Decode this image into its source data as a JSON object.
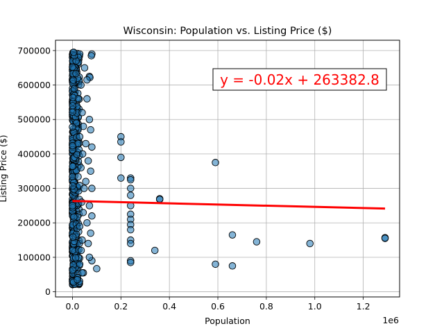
{
  "chart_data": {
    "type": "scatter",
    "title": "Wisconsin: Population vs. Listing Price ($)",
    "xlabel": "Population",
    "ylabel": "Listing Price ($)",
    "x_offset_label": "1e6",
    "xlim": [
      -70000,
      1350000
    ],
    "ylim": [
      -15000,
      730000
    ],
    "x_ticks": [
      0,
      200000,
      400000,
      600000,
      800000,
      1000000,
      1200000
    ],
    "x_tick_labels": [
      "0.0",
      "0.2",
      "0.4",
      "0.6",
      "0.8",
      "1.0",
      "1.2"
    ],
    "y_ticks": [
      0,
      100000,
      200000,
      300000,
      400000,
      500000,
      600000,
      700000
    ],
    "y_tick_labels": [
      "0",
      "100000",
      "200000",
      "300000",
      "400000",
      "500000",
      "600000",
      "700000"
    ],
    "grid": true,
    "regression": {
      "equation": "y = -0.02x + 263382.8",
      "slope": -0.017,
      "intercept": 263382.8,
      "x_range": [
        0,
        1290000
      ],
      "color": "#ff0000"
    },
    "marker_color": "#1f77b4",
    "marker_edge": "#000000",
    "points": [
      [
        200000,
        450000
      ],
      [
        200000,
        435000
      ],
      [
        200000,
        390000
      ],
      [
        200000,
        330000
      ],
      [
        240000,
        330000
      ],
      [
        240000,
        325000
      ],
      [
        240000,
        300000
      ],
      [
        240000,
        280000
      ],
      [
        240000,
        250000
      ],
      [
        240000,
        225000
      ],
      [
        240000,
        210000
      ],
      [
        240000,
        195000
      ],
      [
        240000,
        180000
      ],
      [
        240000,
        150000
      ],
      [
        240000,
        140000
      ],
      [
        240000,
        90000
      ],
      [
        240000,
        85000
      ],
      [
        360000,
        270000
      ],
      [
        360000,
        268000
      ],
      [
        340000,
        120000
      ],
      [
        590000,
        375000
      ],
      [
        590000,
        80000
      ],
      [
        660000,
        165000
      ],
      [
        660000,
        75000
      ],
      [
        760000,
        145000
      ],
      [
        980000,
        140000
      ],
      [
        1290000,
        157000
      ],
      [
        1290000,
        155000
      ],
      [
        100000,
        67000
      ],
      [
        80000,
        690000
      ],
      [
        78000,
        685000
      ],
      [
        70000,
        625000
      ],
      [
        72000,
        622000
      ],
      [
        60000,
        615000
      ],
      [
        50000,
        650000
      ],
      [
        30000,
        690000
      ],
      [
        25000,
        680000
      ],
      [
        15000,
        670000
      ],
      [
        8000,
        685000
      ],
      [
        5000,
        695000
      ],
      [
        60000,
        560000
      ],
      [
        70000,
        500000
      ],
      [
        75000,
        470000
      ],
      [
        55000,
        430000
      ],
      [
        80000,
        420000
      ],
      [
        65000,
        380000
      ],
      [
        75000,
        350000
      ],
      [
        55000,
        320000
      ],
      [
        80000,
        300000
      ],
      [
        70000,
        250000
      ],
      [
        80000,
        220000
      ],
      [
        60000,
        200000
      ],
      [
        75000,
        170000
      ],
      [
        65000,
        140000
      ],
      [
        80000,
        90000
      ],
      [
        70000,
        100000
      ],
      [
        45000,
        55000
      ],
      [
        40000,
        55000
      ],
      [
        30000,
        80000
      ],
      [
        20000,
        35000
      ],
      [
        35000,
        600000
      ],
      [
        40000,
        520000
      ],
      [
        45000,
        480000
      ],
      [
        30000,
        450000
      ],
      [
        42000,
        400000
      ],
      [
        35000,
        360000
      ],
      [
        48000,
        300000
      ],
      [
        38000,
        260000
      ],
      [
        44000,
        230000
      ],
      [
        30000,
        190000
      ],
      [
        40000,
        150000
      ],
      [
        36000,
        120000
      ]
    ]
  }
}
